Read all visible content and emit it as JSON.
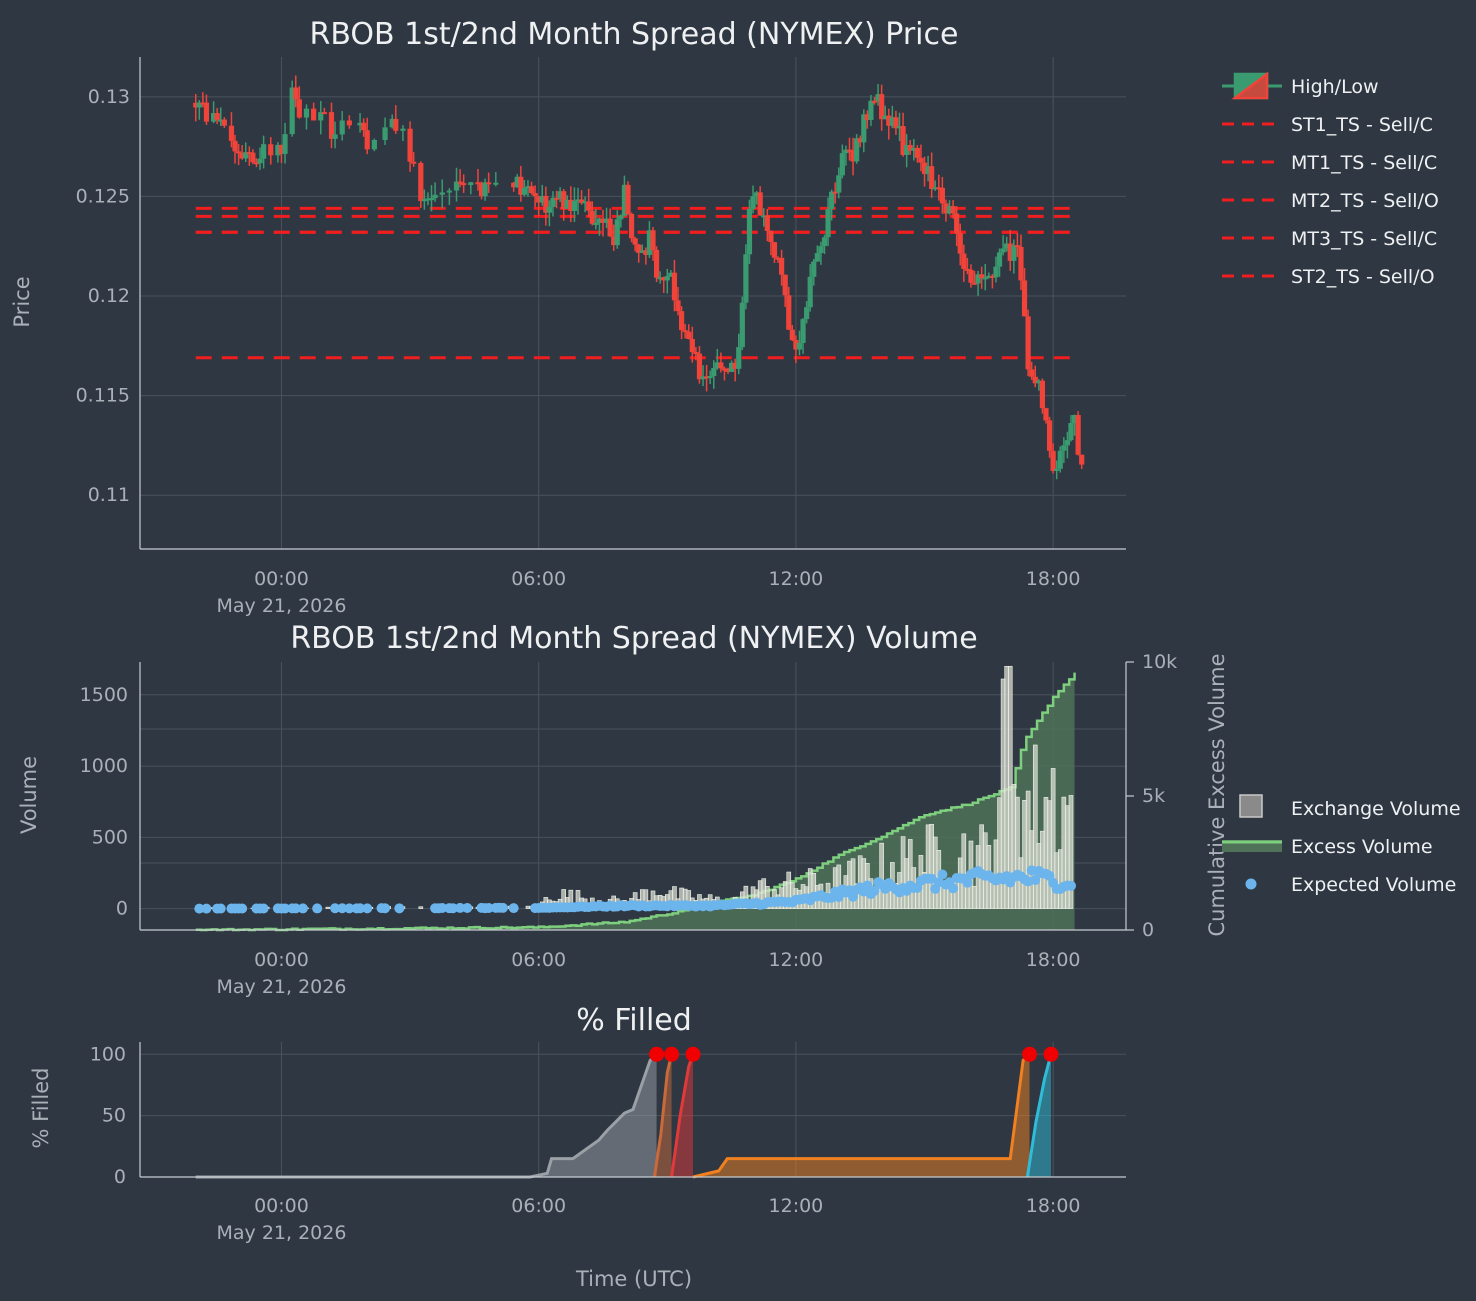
{
  "chart_data": [
    {
      "type": "candlestick",
      "title": "RBOB 1st/2nd Month Spread (NYMEX) Price",
      "ylabel": "Price",
      "xlabel": "",
      "x_ticks": [
        "00:00",
        "06:00",
        "12:00",
        "18:00"
      ],
      "x_tick_date": "May 21, 2026",
      "y_ticks": [
        "0.11",
        "0.115",
        "0.12",
        "0.125",
        "0.13"
      ],
      "ylim": [
        0.1073,
        0.132
      ],
      "xlim_hours": [
        -3.3,
        19.7
      ],
      "up_color": "#3a9a70",
      "down_color": "#f0443a",
      "legend": [
        "High/Low",
        "ST1_TS - Sell/C",
        "MT1_TS - Sell/C",
        "MT2_TS - Sell/O",
        "MT3_TS - Sell/C",
        "ST2_TS - Sell/O"
      ],
      "levels": [
        {
          "name": "ST1_TS - Sell/C",
          "value": 0.1244
        },
        {
          "name": "MT1_TS - Sell/C",
          "value": 0.124
        },
        {
          "name": "MT2_TS - Sell/O",
          "value": 0.1232
        },
        {
          "name": "MT3_TS - Sell/C",
          "value": 0.1169
        },
        {
          "name": "ST2_TS - Sell/O",
          "value": 0.1232
        }
      ],
      "level_range_hours": [
        -2.0,
        18.5
      ],
      "anchors": [
        {
          "h": -2.0,
          "p": 0.1297
        },
        {
          "h": -1.0,
          "p": 0.1274
        },
        {
          "h": -0.4,
          "p": 0.1272
        },
        {
          "h": 0.0,
          "p": 0.127
        },
        {
          "h": 0.2,
          "p": 0.13
        },
        {
          "h": 0.6,
          "p": 0.129
        },
        {
          "h": 1.0,
          "p": 0.1288
        },
        {
          "h": 1.2,
          "p": 0.1275
        },
        {
          "h": 1.4,
          "p": 0.1292
        },
        {
          "h": 1.8,
          "p": 0.1282
        },
        {
          "h": 2.0,
          "p": 0.1278
        },
        {
          "h": 2.7,
          "p": 0.1285
        },
        {
          "h": 3.0,
          "p": 0.127
        },
        {
          "h": 3.3,
          "p": 0.125
        },
        {
          "h": 4.0,
          "p": 0.1255
        },
        {
          "h": 5.0,
          "p": 0.1253
        },
        {
          "h": 5.5,
          "p": 0.1255
        },
        {
          "h": 6.2,
          "p": 0.1245
        },
        {
          "h": 6.5,
          "p": 0.125
        },
        {
          "h": 7.0,
          "p": 0.1245
        },
        {
          "h": 7.4,
          "p": 0.124
        },
        {
          "h": 7.8,
          "p": 0.123
        },
        {
          "h": 8.0,
          "p": 0.1255
        },
        {
          "h": 8.3,
          "p": 0.1215
        },
        {
          "h": 8.6,
          "p": 0.123
        },
        {
          "h": 8.8,
          "p": 0.121
        },
        {
          "h": 9.0,
          "p": 0.1215
        },
        {
          "h": 9.3,
          "p": 0.119
        },
        {
          "h": 9.6,
          "p": 0.117
        },
        {
          "h": 9.8,
          "p": 0.116
        },
        {
          "h": 10.1,
          "p": 0.116
        },
        {
          "h": 10.4,
          "p": 0.1165
        },
        {
          "h": 10.6,
          "p": 0.116
        },
        {
          "h": 10.9,
          "p": 0.124
        },
        {
          "h": 11.1,
          "p": 0.125
        },
        {
          "h": 11.3,
          "p": 0.123
        },
        {
          "h": 11.6,
          "p": 0.122
        },
        {
          "h": 11.9,
          "p": 0.118
        },
        {
          "h": 12.1,
          "p": 0.1175
        },
        {
          "h": 12.4,
          "p": 0.1215
        },
        {
          "h": 12.7,
          "p": 0.1235
        },
        {
          "h": 13.0,
          "p": 0.1265
        },
        {
          "h": 13.4,
          "p": 0.1275
        },
        {
          "h": 13.8,
          "p": 0.13
        },
        {
          "h": 14.1,
          "p": 0.129
        },
        {
          "h": 14.4,
          "p": 0.128
        },
        {
          "h": 14.7,
          "p": 0.127
        },
        {
          "h": 15.1,
          "p": 0.126
        },
        {
          "h": 15.4,
          "p": 0.125
        },
        {
          "h": 15.7,
          "p": 0.124
        },
        {
          "h": 16.0,
          "p": 0.121
        },
        {
          "h": 16.3,
          "p": 0.1205
        },
        {
          "h": 16.6,
          "p": 0.1215
        },
        {
          "h": 16.9,
          "p": 0.1225
        },
        {
          "h": 17.2,
          "p": 0.122
        },
        {
          "h": 17.4,
          "p": 0.117
        },
        {
          "h": 17.6,
          "p": 0.116
        },
        {
          "h": 17.8,
          "p": 0.114
        },
        {
          "h": 18.0,
          "p": 0.111
        },
        {
          "h": 18.2,
          "p": 0.1125
        },
        {
          "h": 18.5,
          "p": 0.114
        },
        {
          "h": 18.7,
          "p": 0.1105
        }
      ]
    },
    {
      "type": "bar+line",
      "title": "RBOB 1st/2nd Month Spread (NYMEX) Volume",
      "ylabel": "Volume",
      "y2label": "Cumulative Excess Volume",
      "x_ticks": [
        "00:00",
        "06:00",
        "12:00",
        "18:00"
      ],
      "x_tick_date": "May 21, 2026",
      "y_ticks": [
        "0",
        "500",
        "1000",
        "1500"
      ],
      "y2_ticks": [
        "0",
        "5k",
        "10k"
      ],
      "ylim": [
        -150,
        1730
      ],
      "y2lim": [
        0,
        10000
      ],
      "legend": [
        "Exchange Volume",
        "Excess Volume",
        "Expected Volume"
      ],
      "series_colors": {
        "exchange": "#d8dcd0",
        "excess": "#7ecf7e",
        "expected": "#6cb4ec"
      },
      "exchange_volume_anchors": [
        {
          "h": -2.0,
          "v": 5
        },
        {
          "h": 6.0,
          "v": 20
        },
        {
          "h": 6.3,
          "v": 130
        },
        {
          "h": 8.0,
          "v": 60
        },
        {
          "h": 8.8,
          "v": 180
        },
        {
          "h": 9.2,
          "v": 120
        },
        {
          "h": 10.5,
          "v": 60
        },
        {
          "h": 11.0,
          "v": 170
        },
        {
          "h": 13.0,
          "v": 250
        },
        {
          "h": 14.5,
          "v": 420
        },
        {
          "h": 15.5,
          "v": 500
        },
        {
          "h": 16.5,
          "v": 480
        },
        {
          "h": 17.0,
          "v": 1700
        },
        {
          "h": 17.3,
          "v": 900
        },
        {
          "h": 18.0,
          "v": 1000
        },
        {
          "h": 18.5,
          "v": 800
        }
      ],
      "expected_volume_anchors": [
        {
          "h": -2.0,
          "v": 0
        },
        {
          "h": 6.0,
          "v": 5
        },
        {
          "h": 8.0,
          "v": 20
        },
        {
          "h": 10.0,
          "v": 20
        },
        {
          "h": 12.0,
          "v": 50
        },
        {
          "h": 14.0,
          "v": 150
        },
        {
          "h": 16.0,
          "v": 200
        },
        {
          "h": 17.5,
          "v": 220
        },
        {
          "h": 18.5,
          "v": 180
        }
      ],
      "cumulative_excess_anchors": [
        {
          "h": -2.0,
          "v": 0
        },
        {
          "h": 6.0,
          "v": 100
        },
        {
          "h": 8.0,
          "v": 300
        },
        {
          "h": 9.0,
          "v": 600
        },
        {
          "h": 10.0,
          "v": 1000
        },
        {
          "h": 11.0,
          "v": 1300
        },
        {
          "h": 12.0,
          "v": 1900
        },
        {
          "h": 13.0,
          "v": 2800
        },
        {
          "h": 14.0,
          "v": 3500
        },
        {
          "h": 15.0,
          "v": 4300
        },
        {
          "h": 16.0,
          "v": 4700
        },
        {
          "h": 17.0,
          "v": 5300
        },
        {
          "h": 17.3,
          "v": 7000
        },
        {
          "h": 18.0,
          "v": 8700
        },
        {
          "h": 18.5,
          "v": 9600
        }
      ]
    },
    {
      "type": "area",
      "title": "% Filled",
      "ylabel": "% Filled",
      "xlabel": "Time (UTC)",
      "x_ticks": [
        "00:00",
        "06:00",
        "12:00",
        "18:00"
      ],
      "x_tick_date": "May 21, 2026",
      "y_ticks": [
        "0",
        "50",
        "100"
      ],
      "ylim": [
        0,
        110
      ],
      "series": [
        {
          "color": "#9aa0a6",
          "end_marker": true,
          "points": [
            [
              -2.0,
              0
            ],
            [
              5.8,
              0
            ],
            [
              6.2,
              3
            ],
            [
              6.3,
              15
            ],
            [
              6.8,
              15
            ],
            [
              7.0,
              20
            ],
            [
              7.4,
              30
            ],
            [
              7.6,
              38
            ],
            [
              7.8,
              45
            ],
            [
              8.0,
              52
            ],
            [
              8.2,
              55
            ],
            [
              8.6,
              95
            ],
            [
              8.75,
              100
            ]
          ]
        },
        {
          "color": "#c86a3a",
          "end_marker": true,
          "points": [
            [
              8.7,
              0
            ],
            [
              8.85,
              35
            ],
            [
              9.0,
              85
            ],
            [
              9.1,
              100
            ]
          ]
        },
        {
          "color": "#e03a3a",
          "end_marker": true,
          "points": [
            [
              9.1,
              0
            ],
            [
              9.3,
              50
            ],
            [
              9.5,
              90
            ],
            [
              9.6,
              100
            ]
          ]
        },
        {
          "color": "#f08020",
          "end_marker": true,
          "points": [
            [
              9.6,
              0
            ],
            [
              10.2,
              5
            ],
            [
              10.4,
              15
            ],
            [
              17.0,
              15
            ],
            [
              17.3,
              95
            ],
            [
              17.45,
              100
            ]
          ]
        },
        {
          "color": "#30bcd8",
          "end_marker": true,
          "points": [
            [
              17.4,
              0
            ],
            [
              17.6,
              45
            ],
            [
              17.8,
              80
            ],
            [
              17.95,
              100
            ]
          ]
        }
      ]
    }
  ]
}
